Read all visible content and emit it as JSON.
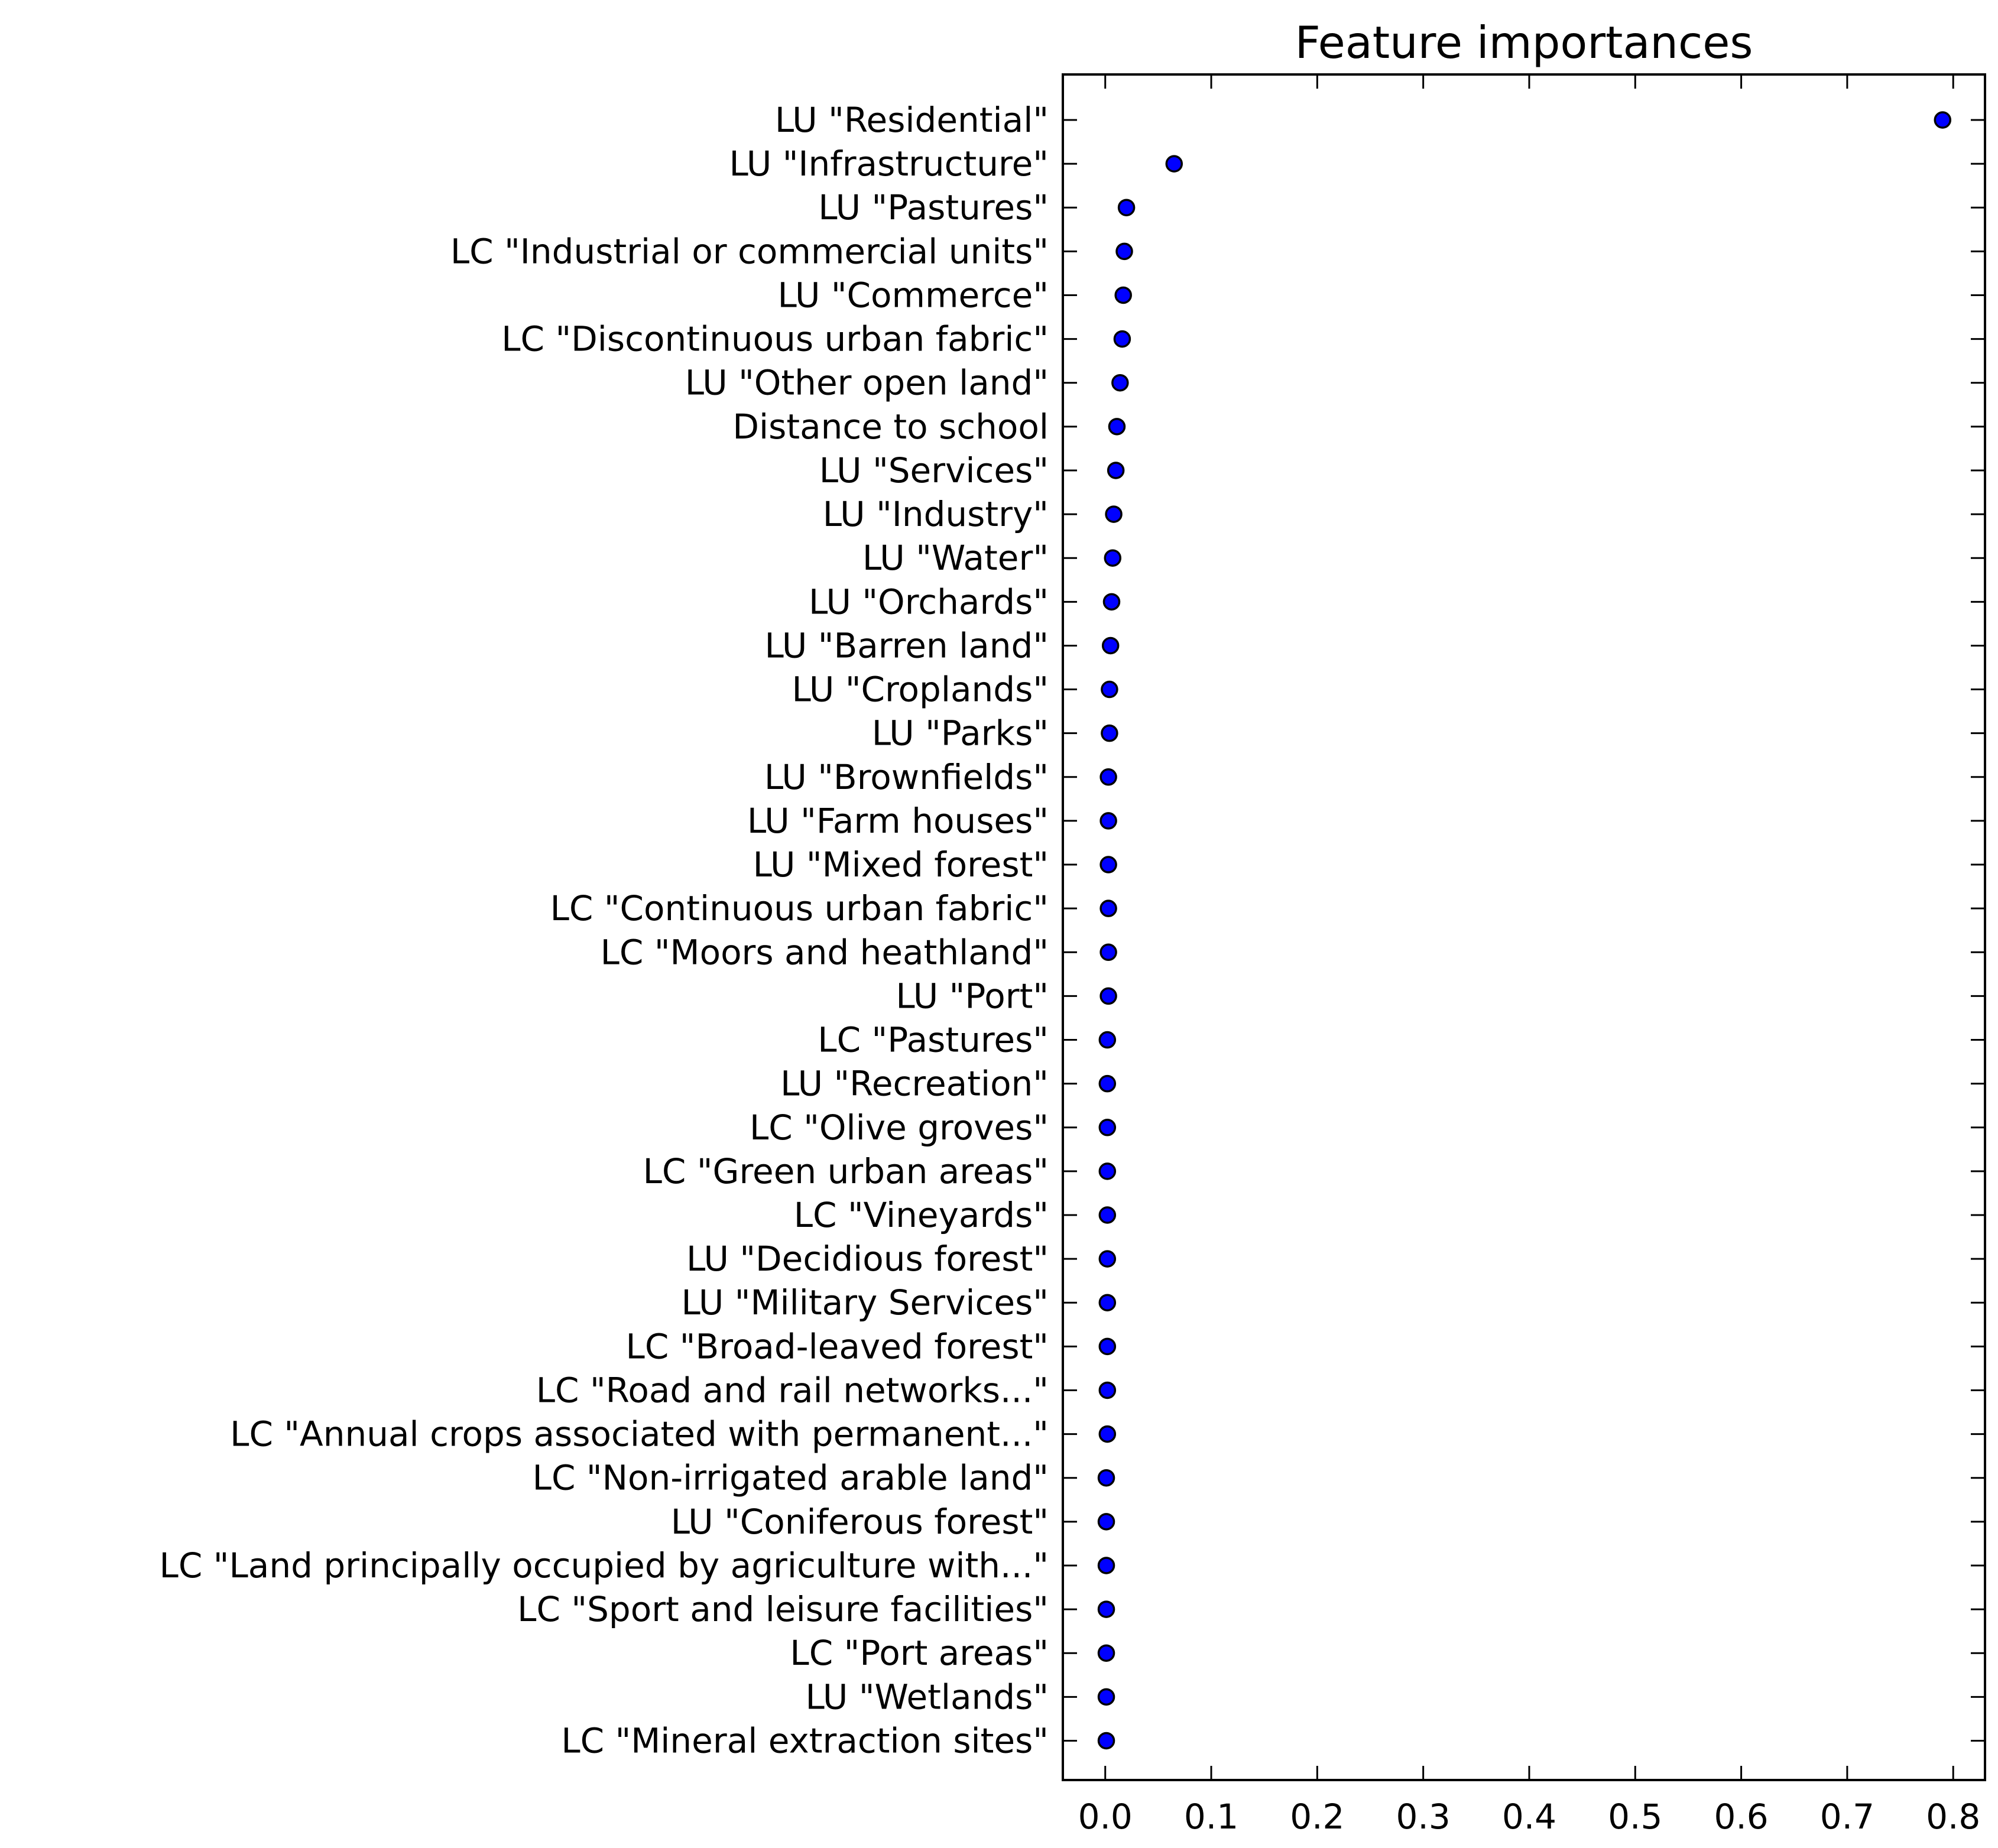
{
  "chart_data": {
    "type": "scatter",
    "title": "Feature importances",
    "xlabel": "",
    "ylabel": "",
    "xlim": [
      -0.04,
      0.83
    ],
    "xticks": [
      0.0,
      0.1,
      0.2,
      0.3,
      0.4,
      0.5,
      0.6,
      0.7,
      0.8
    ],
    "xtick_labels": [
      "0.0",
      "0.1",
      "0.2",
      "0.3",
      "0.4",
      "0.5",
      "0.6",
      "0.7",
      "0.8"
    ],
    "grid": false,
    "marker_color": "#0000ff",
    "categories": [
      "LU \"Residential\"",
      "LU \"Infrastructure\"",
      "LU \"Pastures\"",
      "LC \"Industrial or commercial units\"",
      "LU \"Commerce\"",
      "LC \"Discontinuous urban fabric\"",
      "LU \"Other open land\"",
      "Distance to school",
      "LU \"Services\"",
      "LU \"Industry\"",
      "LU \"Water\"",
      "LU \"Orchards\"",
      "LU \"Barren land\"",
      "LU \"Croplands\"",
      "LU \"Parks\"",
      "LU \"Brownfields\"",
      "LU \"Farm houses\"",
      "LU \"Mixed forest\"",
      "LC \"Continuous urban fabric\"",
      "LC \"Moors and heathland\"",
      "LU \"Port\"",
      "LC \"Pastures\"",
      "LU \"Recreation\"",
      "LC \"Olive groves\"",
      "LC \"Green urban areas\"",
      "LC \"Vineyards\"",
      "LU \"Decidious forest\"",
      "LU \"Military Services\"",
      "LC \"Broad-leaved forest\"",
      "LC \"Road and rail networks...\"",
      "LC \"Annual crops associated with permanent...\"",
      "LC \"Non-irrigated arable land\"",
      "LU \"Coniferous forest\"",
      "LC \"Land principally occupied by agriculture with...\"",
      "LC \"Sport and leisure facilities\"",
      "LC \"Port areas\"",
      "LU \"Wetlands\"",
      "LC \"Mineral extraction sites\""
    ],
    "values": [
      0.79,
      0.065,
      0.02,
      0.018,
      0.017,
      0.016,
      0.014,
      0.011,
      0.01,
      0.008,
      0.007,
      0.006,
      0.005,
      0.004,
      0.004,
      0.003,
      0.003,
      0.003,
      0.003,
      0.003,
      0.003,
      0.002,
      0.002,
      0.002,
      0.002,
      0.002,
      0.002,
      0.002,
      0.002,
      0.002,
      0.002,
      0.001,
      0.001,
      0.001,
      0.001,
      0.001,
      0.001,
      0.001
    ]
  }
}
